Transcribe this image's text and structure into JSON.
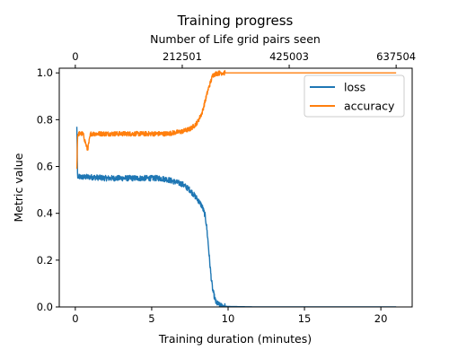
{
  "chart_data": {
    "type": "line",
    "title": "Training progress",
    "xlabel": "Training duration (minutes)",
    "ylabel": "Metric value",
    "x2label": "Number of Life grid pairs seen",
    "xlim": [
      -1.05,
      22.05
    ],
    "ylim": [
      0.0,
      1.02
    ],
    "xticks": [
      "0",
      "5",
      "10",
      "15",
      "20"
    ],
    "xtick_values": [
      0,
      5,
      10,
      15,
      20
    ],
    "yticks": [
      "0.0",
      "0.2",
      "0.4",
      "0.6",
      "0.8",
      "1.0"
    ],
    "ytick_values": [
      0.0,
      0.2,
      0.4,
      0.6,
      0.8,
      1.0
    ],
    "x2ticks": [
      "0",
      "212501",
      "425003",
      "637504"
    ],
    "x2tick_values": [
      0,
      212501,
      425003,
      637504
    ],
    "x2lim": [
      0,
      637504
    ],
    "legend_position": "top-right",
    "grid": false,
    "series": [
      {
        "name": "loss",
        "color": "#1f77b4",
        "x": [
          0.1,
          0.15,
          0.2,
          0.5,
          1,
          2,
          3,
          4,
          5,
          5.5,
          6,
          6.5,
          7,
          7.5,
          8,
          8.3,
          8.5,
          8.6,
          8.7,
          8.8,
          8.9,
          9.0,
          9.2,
          9.5,
          10,
          12,
          15,
          18,
          21
        ],
        "y": [
          0.77,
          0.55,
          0.555,
          0.555,
          0.555,
          0.55,
          0.55,
          0.55,
          0.55,
          0.55,
          0.545,
          0.535,
          0.525,
          0.5,
          0.46,
          0.43,
          0.39,
          0.34,
          0.27,
          0.19,
          0.12,
          0.07,
          0.02,
          0.005,
          0.002,
          0.0,
          0.0,
          0.0,
          0.0
        ],
        "noise": 0.012
      },
      {
        "name": "accuracy",
        "color": "#ff7f0e",
        "x": [
          0.1,
          0.15,
          0.2,
          0.5,
          0.8,
          1,
          2,
          3,
          4,
          5,
          5.5,
          6,
          6.5,
          7,
          7.5,
          7.8,
          8,
          8.3,
          8.5,
          8.7,
          8.9,
          9.0,
          9.2,
          9.5,
          10,
          12,
          15,
          18,
          21
        ],
        "y": [
          0.59,
          0.73,
          0.74,
          0.74,
          0.67,
          0.74,
          0.74,
          0.74,
          0.74,
          0.74,
          0.74,
          0.74,
          0.745,
          0.75,
          0.76,
          0.775,
          0.79,
          0.83,
          0.88,
          0.93,
          0.97,
          0.99,
          0.997,
          1.0,
          1.0,
          1.0,
          1.0,
          1.0,
          1.0
        ],
        "noise": 0.01
      }
    ]
  }
}
